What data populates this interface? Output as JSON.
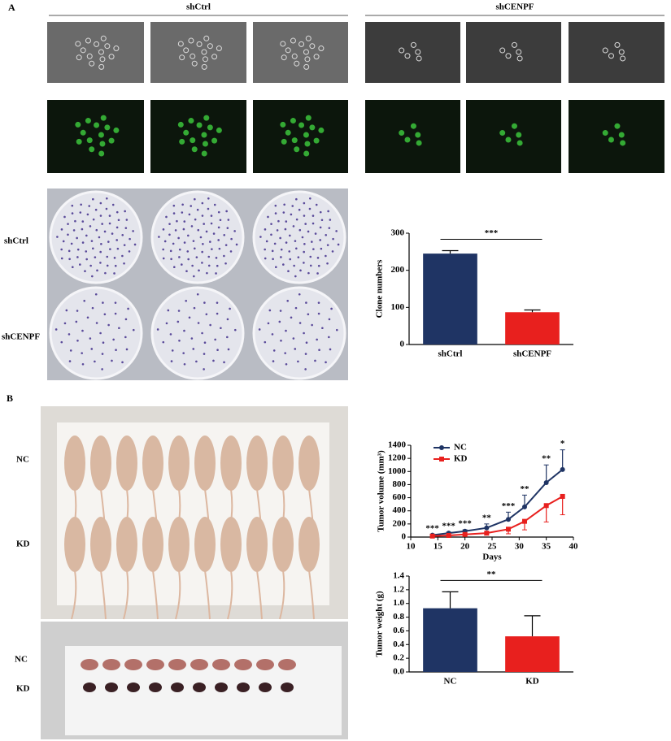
{
  "panel_labels": [
    "A",
    "B"
  ],
  "microscopy": {
    "groups": [
      "shCtrl",
      "shCENPF"
    ]
  },
  "plate": {
    "rows": [
      "shCtrl",
      "shCENPF"
    ]
  },
  "mice": {
    "rows": [
      "NC",
      "KD"
    ]
  },
  "tumors": {
    "rows": [
      "NC",
      "KD"
    ]
  },
  "chart_data": [
    {
      "type": "bar",
      "ylabel": "Clone numbers",
      "categories": [
        "shCtrl",
        "shCENPF"
      ],
      "values": [
        245,
        87
      ],
      "errors": [
        8,
        6
      ],
      "colors": [
        "#1f3464",
        "#e8201e"
      ],
      "ylim": [
        0,
        300
      ],
      "yticks": [
        0,
        100,
        200,
        300
      ],
      "annotation": "***"
    },
    {
      "type": "line",
      "xlabel": "Days",
      "ylabel": "Tumor volume (mm³)",
      "x": [
        14,
        17,
        20,
        24,
        28,
        31,
        35,
        38
      ],
      "series": [
        {
          "name": "NC",
          "color": "#1f3464",
          "marker": "circle",
          "values": [
            30,
            60,
            90,
            140,
            270,
            460,
            830,
            1030
          ],
          "errors": [
            10,
            15,
            20,
            60,
            110,
            180,
            270,
            300
          ]
        },
        {
          "name": "KD",
          "color": "#e8201e",
          "marker": "square",
          "values": [
            15,
            25,
            40,
            60,
            120,
            240,
            480,
            620
          ],
          "errors": [
            5,
            10,
            15,
            30,
            70,
            130,
            250,
            280
          ]
        }
      ],
      "xlim": [
        10,
        40
      ],
      "xticks": [
        10,
        15,
        20,
        25,
        30,
        35,
        40
      ],
      "ylim": [
        0,
        1400
      ],
      "yticks": [
        0,
        200,
        400,
        600,
        800,
        1000,
        1200,
        1400
      ],
      "legend": "upper left",
      "annotations": [
        {
          "x": 14,
          "text": "***"
        },
        {
          "x": 17,
          "text": "***"
        },
        {
          "x": 20,
          "text": "***"
        },
        {
          "x": 24,
          "text": "**"
        },
        {
          "x": 28,
          "text": "***"
        },
        {
          "x": 31,
          "text": "**"
        },
        {
          "x": 35,
          "text": "**"
        },
        {
          "x": 38,
          "text": "*"
        }
      ]
    },
    {
      "type": "bar",
      "ylabel": "Tumor weight (g)",
      "categories": [
        "NC",
        "KD"
      ],
      "values": [
        0.93,
        0.52
      ],
      "errors": [
        0.24,
        0.3
      ],
      "colors": [
        "#1f3464",
        "#e8201e"
      ],
      "ylim": [
        0,
        1.4
      ],
      "yticks": [
        {
          "value": 0,
          "label": "0.0"
        },
        0.2,
        0.4,
        0.6,
        0.8,
        {
          "value": 1,
          "label": "1.0"
        },
        1.2,
        1.4
      ],
      "annotation": "**"
    }
  ]
}
